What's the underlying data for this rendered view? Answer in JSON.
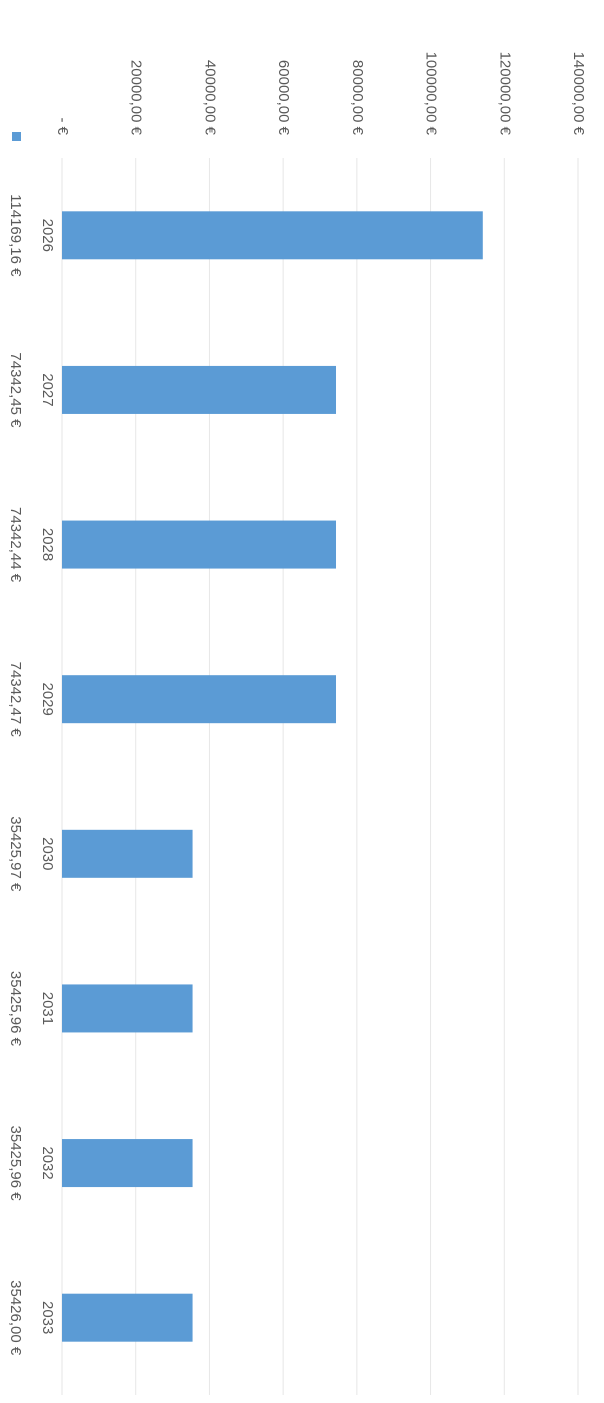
{
  "chart_data": {
    "type": "bar",
    "color": "#5b9bd5",
    "categories": [
      "2026",
      "2027",
      "2028",
      "2029",
      "2030",
      "2031",
      "2032",
      "2033"
    ],
    "values": [
      114169.16,
      74342.45,
      74342.44,
      74342.47,
      35425.97,
      35425.96,
      35425.96,
      35426.0
    ],
    "value_labels": [
      "114169,16 €",
      "74342,45 €",
      "74342,44 €",
      "74342,47 €",
      "35425,97 €",
      "35425,96 €",
      "35425,96 €",
      "35426,00 €"
    ],
    "ylim": [
      0,
      140000
    ],
    "yticks": [
      {
        "value": 0,
        "label": "- €"
      },
      {
        "value": 20000,
        "label": "20000,00 €"
      },
      {
        "value": 40000,
        "label": "40000,00 €"
      },
      {
        "value": 60000,
        "label": "60000,00 €"
      },
      {
        "value": 80000,
        "label": "80000,00 €"
      },
      {
        "value": 100000,
        "label": "100000,00 €"
      },
      {
        "value": 120000,
        "label": "120000,00 €"
      },
      {
        "value": 140000,
        "label": "140000,00 €"
      }
    ],
    "grid": true
  }
}
